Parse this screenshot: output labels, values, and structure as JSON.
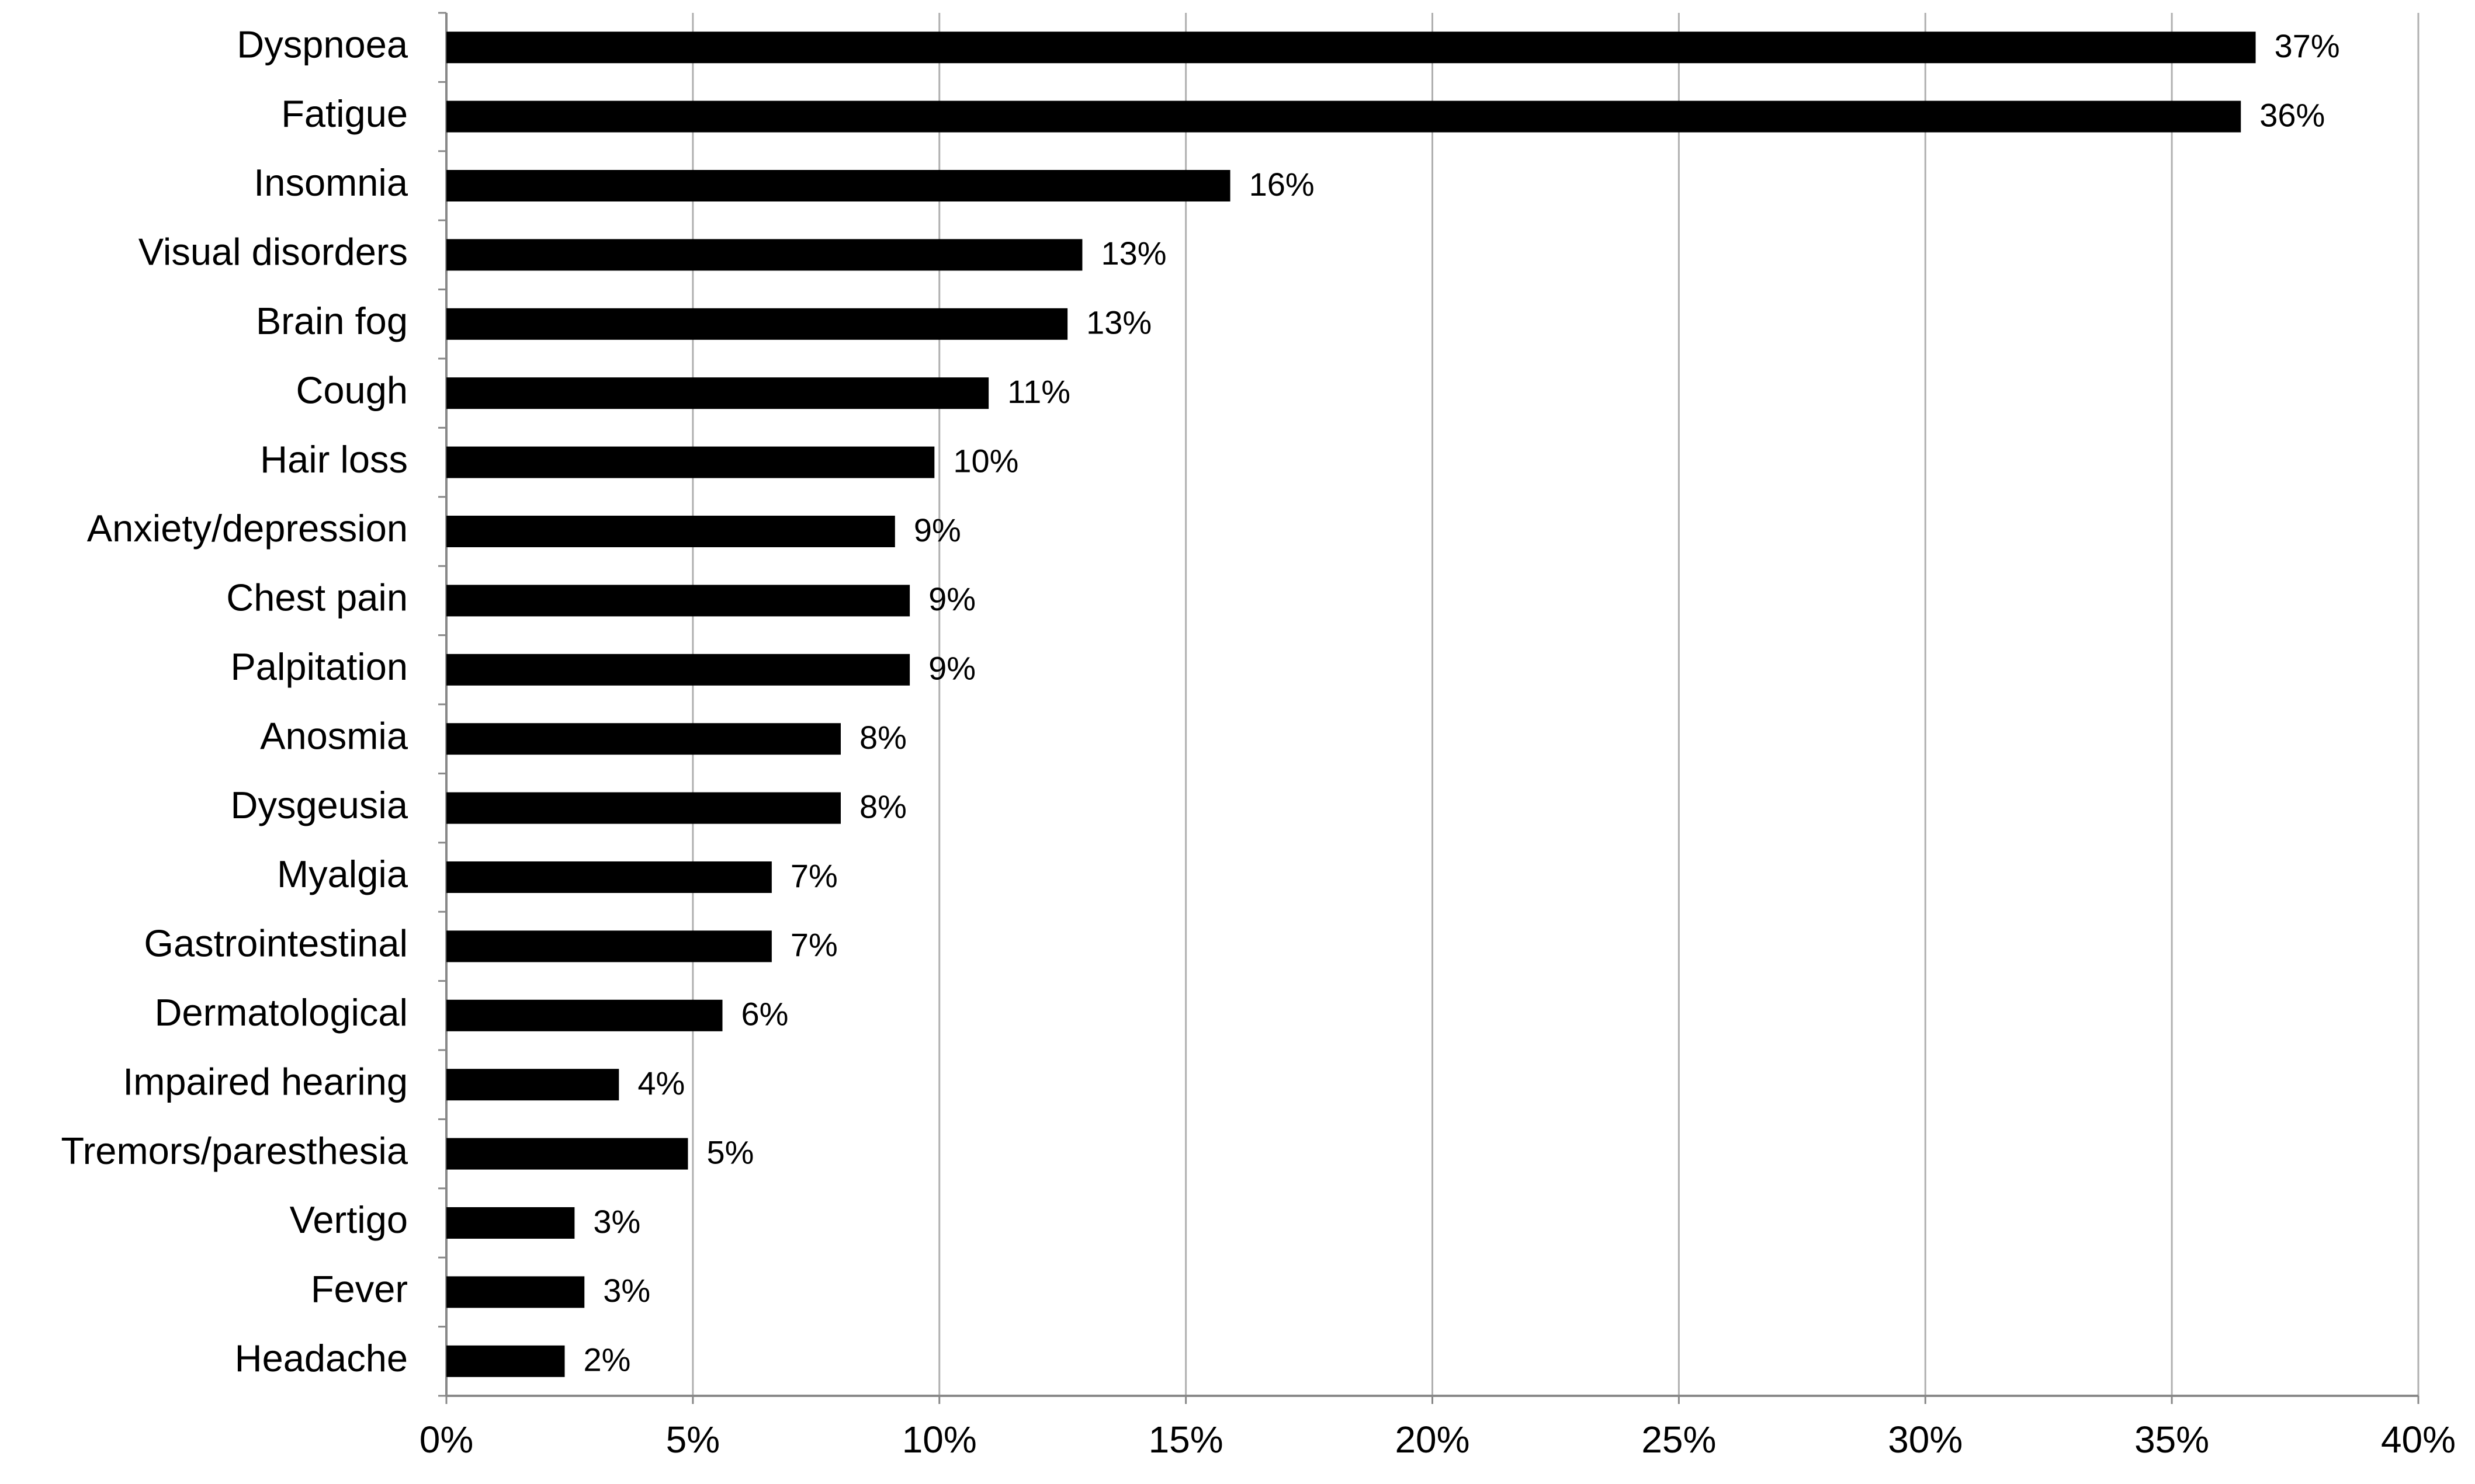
{
  "chart_data": {
    "type": "hbar",
    "categories": [
      "Dyspnoea",
      "Fatigue",
      "Insomnia",
      "Visual disorders",
      "Brain fog",
      "Cough",
      "Hair loss",
      "Anxiety/depression",
      "Chest pain",
      "Palpitation",
      "Anosmia",
      "Dysgeusia",
      "Myalgia",
      "Gastrointestinal",
      "Dermatological",
      "Impaired hearing",
      "Tremors/paresthesia",
      "Vertigo",
      "Fever",
      "Headache"
    ],
    "values": [
      36.7,
      36.4,
      15.9,
      12.9,
      12.6,
      11.0,
      9.9,
      9.1,
      9.4,
      9.4,
      8.0,
      8.0,
      6.6,
      6.6,
      5.6,
      3.5,
      4.9,
      2.6,
      2.8,
      2.4
    ],
    "value_labels": [
      "37%",
      "36%",
      "16%",
      "13%",
      "13%",
      "11%",
      "10%",
      "9%",
      "9%",
      "9%",
      "8%",
      "8%",
      "7%",
      "7%",
      "6%",
      "4%",
      "5%",
      "3%",
      "3%",
      "2%"
    ],
    "color": "#000000",
    "xlim": [
      0,
      40
    ],
    "xticks": [
      {
        "value": 0,
        "label": "0%"
      },
      {
        "value": 5,
        "label": "5%"
      },
      {
        "value": 10,
        "label": "10%"
      },
      {
        "value": 15,
        "label": "15%"
      },
      {
        "value": 20,
        "label": "20%"
      },
      {
        "value": 25,
        "label": "25%"
      },
      {
        "value": 30,
        "label": "30%"
      },
      {
        "value": 35,
        "label": "35%"
      },
      {
        "value": 40,
        "label": "40%"
      }
    ],
    "grid": true
  }
}
